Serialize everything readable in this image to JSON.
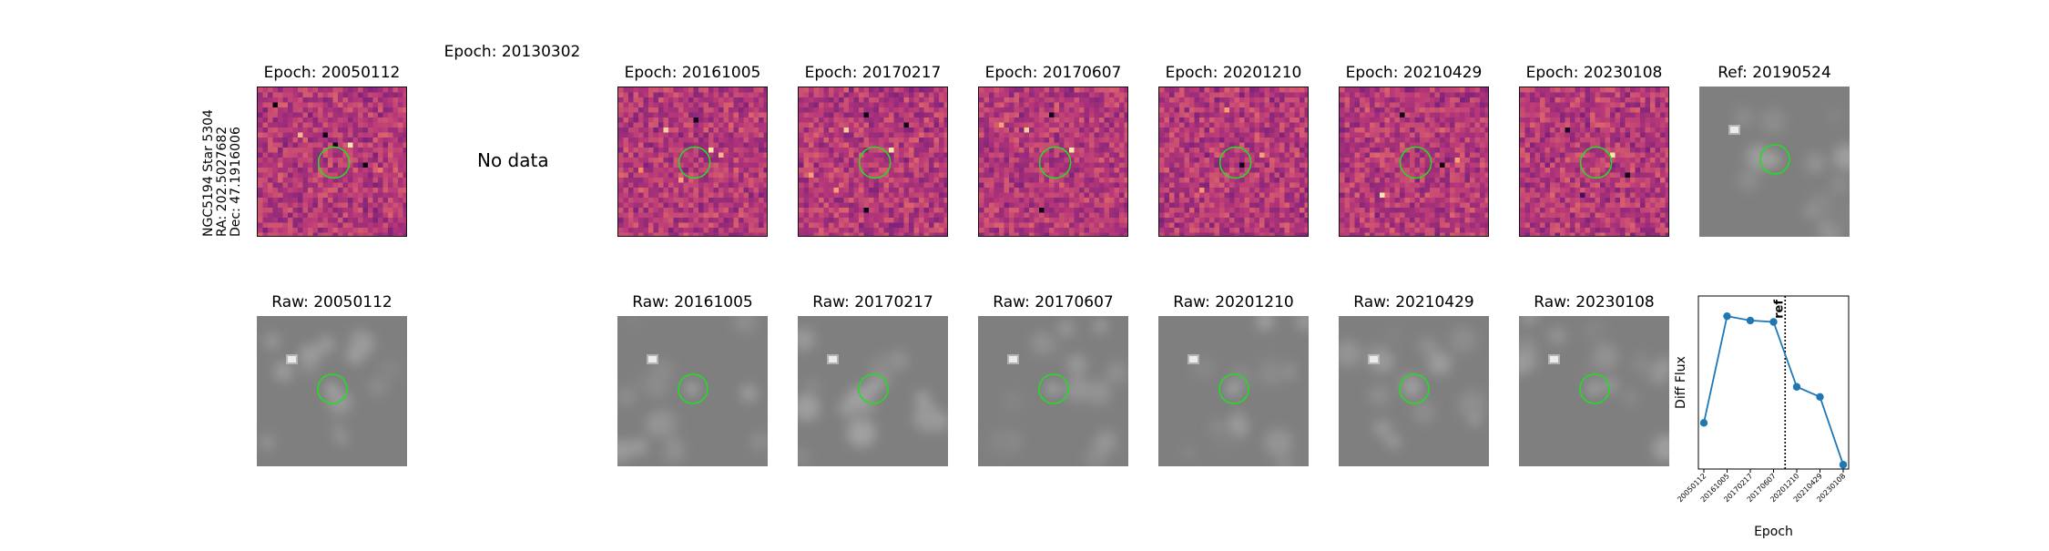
{
  "star": {
    "name": "NGC5194 Star 5304",
    "ra": "RA: 202.5027682",
    "dec": "Dec: 47.1916006"
  },
  "top_titles": [
    "Epoch: 20050112",
    "Epoch: 20130302",
    "Epoch: 20161005",
    "Epoch: 20170217",
    "Epoch: 20170607",
    "Epoch: 20201210",
    "Epoch: 20210429",
    "Epoch: 20230108",
    "Ref: 20190524"
  ],
  "no_data_text": "No data",
  "raw_titles": [
    "Raw: 20050112",
    "Raw: 20161005",
    "Raw: 20170217",
    "Raw: 20170607",
    "Raw: 20201210",
    "Raw: 20210429",
    "Raw: 20230108"
  ],
  "colors": {
    "marker": "#22dd22",
    "series": "#1f77b4",
    "diff_bg": "#a8367c"
  },
  "chart_data": {
    "type": "line",
    "title": "",
    "xlabel": "Epoch",
    "ylabel": "Diff Flux",
    "x": [
      "20050112",
      "20161005",
      "20170217",
      "20170607",
      "20201210",
      "20210429",
      "20230108"
    ],
    "series": [
      {
        "values": [
          0.22,
          0.96,
          0.93,
          0.92,
          0.47,
          0.4,
          -0.07
        ]
      }
    ],
    "ylim": [
      -0.1,
      1.1
    ],
    "reference_line": {
      "label": "ref",
      "between": [
        "20170607",
        "20201210"
      ],
      "style": "dotted"
    },
    "grid": false
  }
}
